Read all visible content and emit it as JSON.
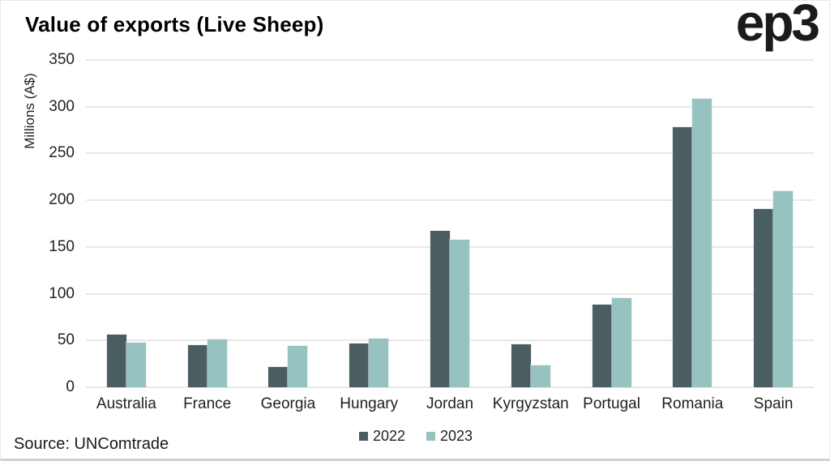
{
  "header": {
    "title": "Value of exports (Live Sheep)",
    "logo": "ep3"
  },
  "chart_data": {
    "type": "bar",
    "title": "Value of exports (Live Sheep)",
    "ylabel": "Millions (A$)",
    "xlabel": "",
    "ylim": [
      0,
      350
    ],
    "yticks": [
      0,
      50,
      100,
      150,
      200,
      250,
      300,
      350
    ],
    "grid": "horizontal",
    "legend_position": "bottom-center",
    "categories": [
      "Australia",
      "France",
      "Georgia",
      "Hungary",
      "Jordan",
      "Kyrgyzstan",
      "Portugal",
      "Romania",
      "Spain"
    ],
    "series": [
      {
        "name": "2022",
        "color": "#4a5d61",
        "values": [
          56,
          45,
          22,
          47,
          167,
          46,
          88,
          278,
          191
        ]
      },
      {
        "name": "2023",
        "color": "#96c3c0",
        "values": [
          48,
          51,
          44,
          52,
          158,
          23,
          95,
          308,
          210
        ]
      }
    ]
  },
  "footer": {
    "source": "Source: UNComtrade"
  }
}
